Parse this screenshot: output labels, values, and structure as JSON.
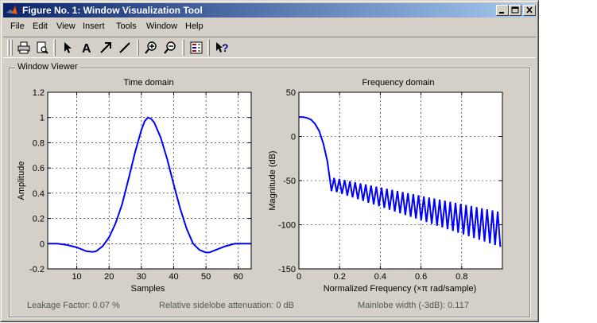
{
  "window": {
    "title": "Figure No. 1: Window Visualization Tool"
  },
  "menu": [
    "File",
    "Edit",
    "View",
    "Insert",
    "Tools",
    "Window",
    "Help"
  ],
  "toolbar": [
    "print-icon",
    "print-preview-icon",
    "pointer-arrow-icon",
    "text-insert-icon",
    "arrow-insert-icon",
    "line-insert-icon",
    "zoom-in-icon",
    "zoom-out-icon",
    "legend-icon",
    "context-help-icon"
  ],
  "toolbar_text_glyph": "A",
  "toolbar_help_glyph": "?",
  "group": {
    "label": "Window Viewer"
  },
  "colors": {
    "titlebar_start": "#0a246a",
    "titlebar_end": "#a6caf0",
    "line": "#0000ff",
    "face": "#d4d0c8"
  },
  "status": {
    "leakage": "Leakage Factor: 0.07 %",
    "sidelobe": "Relative sidelobe attenuation: 0 dB",
    "mainlobe": "Mainlobe width (-3dB): 0.117"
  },
  "chart_data": [
    {
      "type": "line",
      "title": "Time domain",
      "xlabel": "Samples",
      "ylabel": "Amplitude",
      "xlim": [
        1,
        64
      ],
      "ylim": [
        -0.2,
        1.2
      ],
      "xticks": [
        10,
        20,
        30,
        40,
        50,
        60
      ],
      "yticks": [
        -0.2,
        0,
        0.2,
        0.4,
        0.6,
        0.8,
        1,
        1.2
      ],
      "ytick_labels": [
        "-0.2",
        "0",
        "0.2",
        "0.4",
        "0.6",
        "0.8",
        "1",
        "1.2"
      ],
      "grid": true,
      "x": [
        1,
        4,
        7,
        10,
        13,
        15,
        16,
        18,
        20,
        22,
        24,
        26,
        28,
        30,
        31,
        32,
        33,
        34,
        36,
        38,
        40,
        42,
        44,
        46,
        48,
        50,
        51,
        53,
        56,
        59,
        62,
        64
      ],
      "y": [
        0.0,
        0.0,
        -0.01,
        -0.03,
        -0.06,
        -0.065,
        -0.06,
        -0.02,
        0.05,
        0.16,
        0.31,
        0.51,
        0.72,
        0.9,
        0.97,
        1.0,
        0.99,
        0.96,
        0.84,
        0.67,
        0.47,
        0.28,
        0.12,
        0.0,
        -0.05,
        -0.07,
        -0.07,
        -0.05,
        -0.02,
        0.0,
        0.0,
        0.0
      ]
    },
    {
      "type": "line",
      "title": "Frequency domain",
      "xlabel": "Normalized Frequency  (×π rad/sample)",
      "ylabel": "Magnitude (dB)",
      "xlim": [
        0,
        1
      ],
      "ylim": [
        -150,
        50
      ],
      "xticks": [
        0,
        0.2,
        0.4,
        0.6,
        0.8
      ],
      "xtick_labels": [
        "0",
        "0.2",
        "0.4",
        "0.6",
        "0.8"
      ],
      "yticks": [
        -150,
        -100,
        -50,
        0,
        50
      ],
      "ytick_labels": [
        "-150",
        "-100",
        "-50",
        "0",
        "50"
      ],
      "grid": true,
      "mainlobe": {
        "x": [
          0,
          0.02,
          0.04,
          0.06,
          0.08,
          0.1,
          0.12,
          0.14,
          0.16
        ],
        "y": [
          22,
          22,
          21,
          19,
          14,
          6,
          -8,
          -28,
          -62
        ]
      },
      "sidelobes": {
        "x_start": 0.16,
        "x_end": 0.99,
        "lobes": 32,
        "peak_start": -47,
        "peak_end": -85,
        "null_start": -63,
        "null_end": -125
      }
    }
  ]
}
